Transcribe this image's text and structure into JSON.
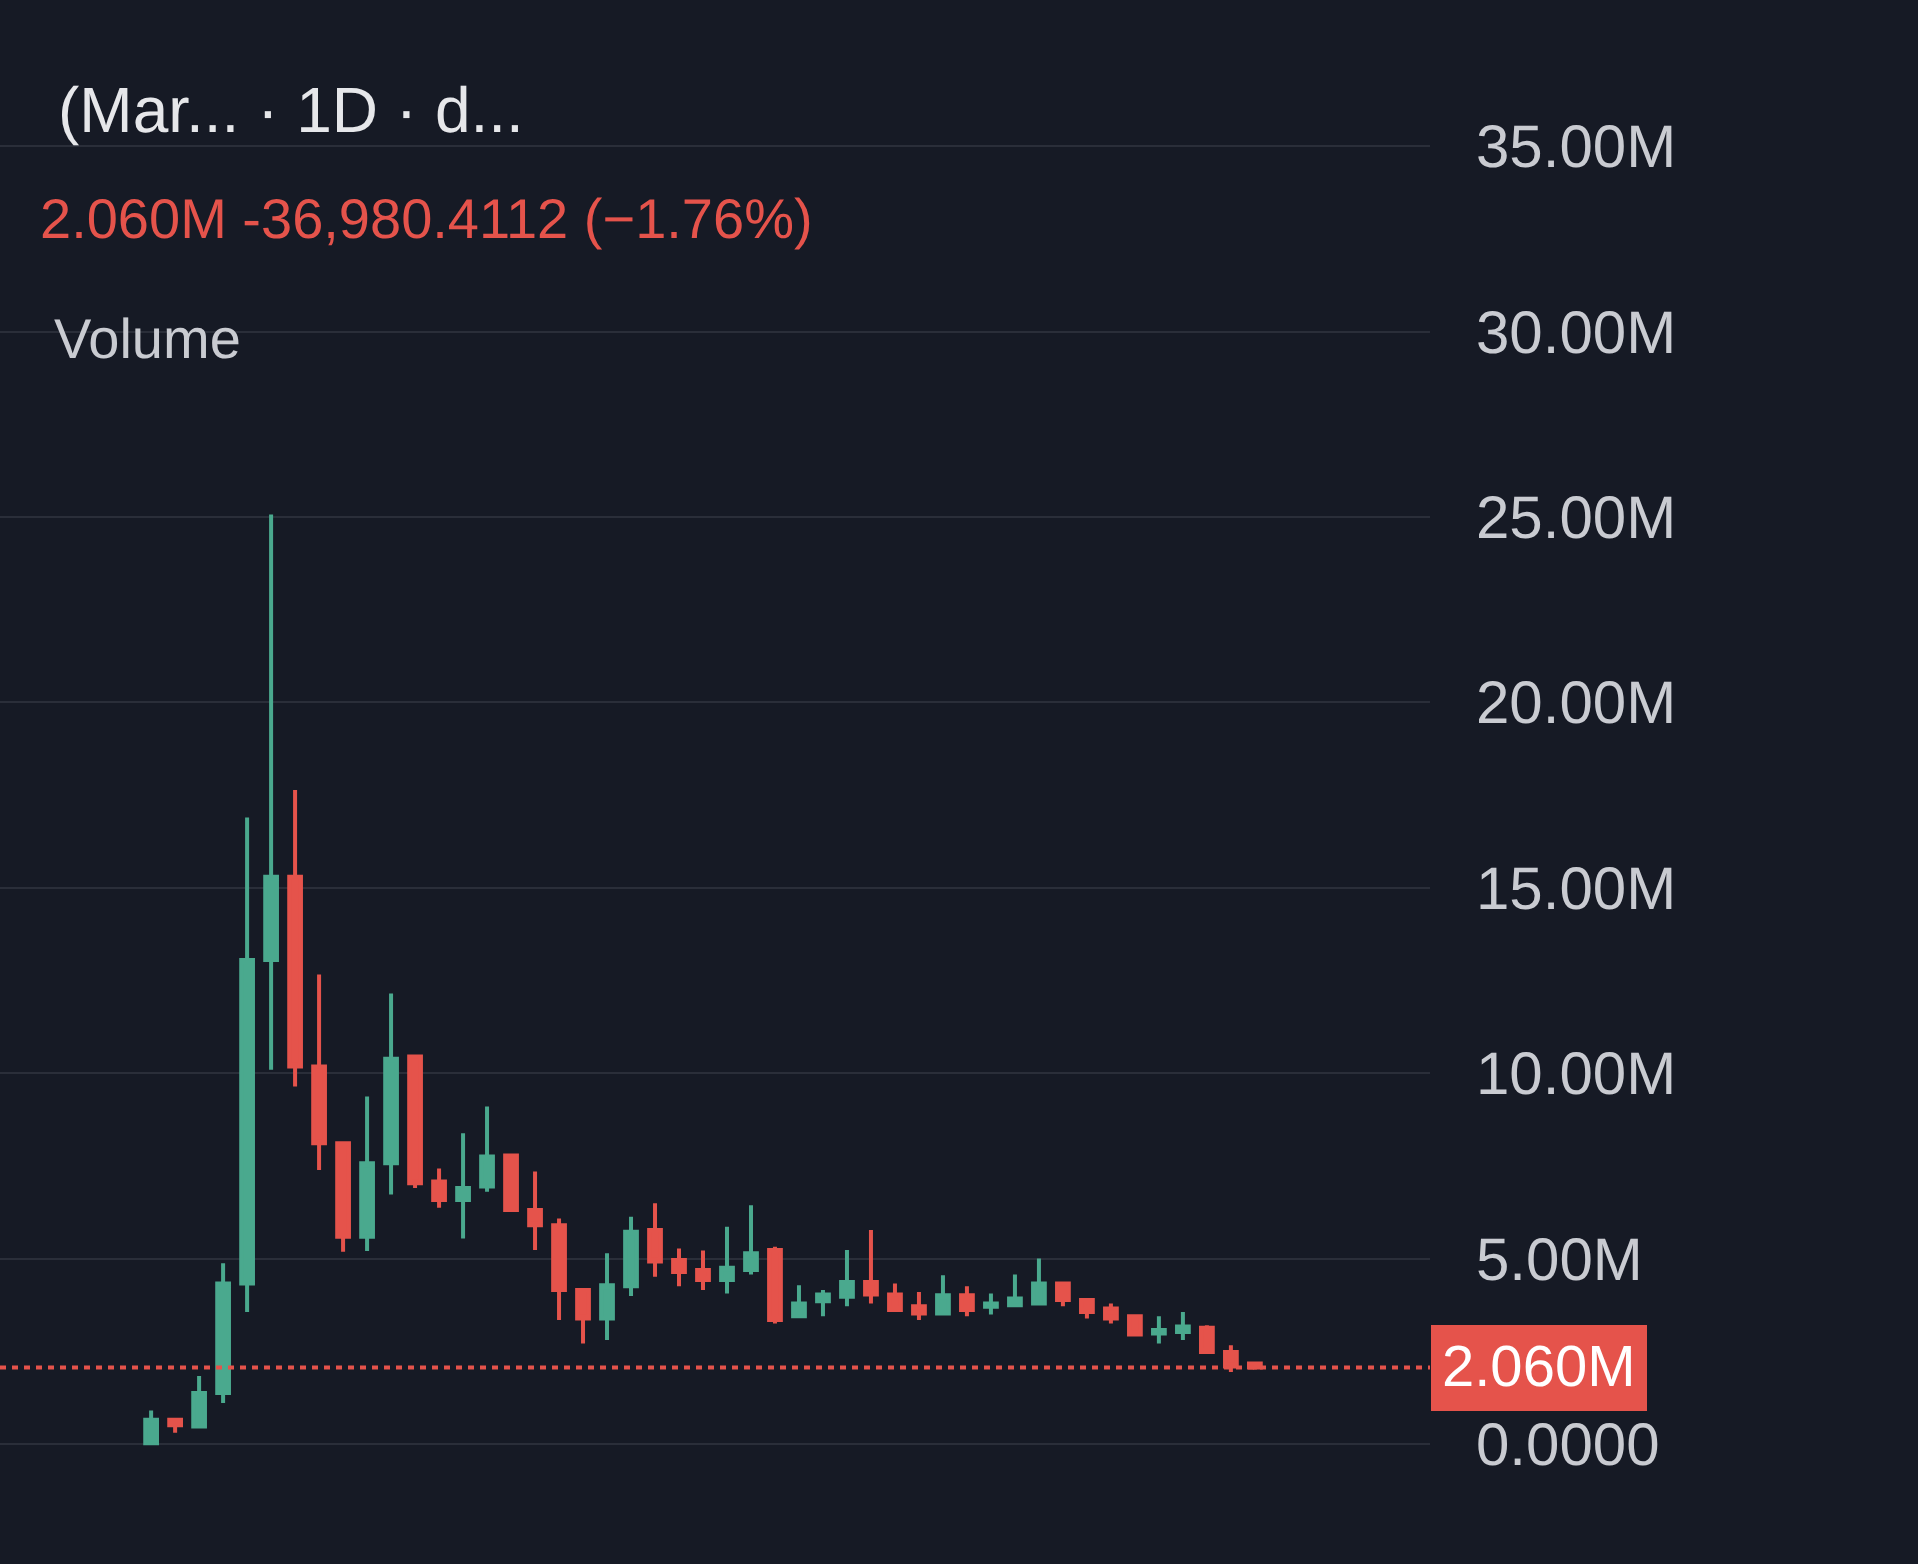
{
  "chart_data": {
    "type": "candlestick",
    "title": "(Mar... · 1D · d...",
    "subtitle": "2.060M -36,980.4112 (−1.76%)",
    "annotations": [
      "Volume"
    ],
    "categories": [
      null,
      null,
      null,
      null,
      null,
      null,
      null,
      null,
      null,
      null,
      null,
      null,
      null,
      null,
      null,
      null,
      null,
      null,
      null,
      null,
      null,
      null,
      null,
      null,
      null,
      null,
      null,
      null,
      null,
      null,
      null,
      null,
      null,
      null,
      null,
      null,
      null,
      null,
      null,
      null,
      null,
      null,
      null,
      null,
      null,
      null,
      null
    ],
    "ohlc": [
      [
        0.02,
        0.9,
        0.0,
        0.65
      ],
      [
        0.65,
        0.65,
        0.3,
        0.5
      ],
      [
        0.47,
        1.83,
        0.47,
        1.37
      ],
      [
        1.37,
        4.87,
        1.1,
        4.33
      ],
      [
        4.33,
        16.9,
        3.56,
        13.05
      ],
      [
        13.05,
        25.07,
        10.09,
        15.3
      ],
      [
        15.3,
        17.64,
        9.64,
        10.18
      ],
      [
        10.18,
        12.66,
        7.39,
        8.11
      ],
      [
        8.11,
        8.11,
        5.18,
        5.59
      ],
      [
        5.59,
        9.37,
        5.2,
        7.57
      ],
      [
        7.57,
        12.15,
        6.73,
        10.39
      ],
      [
        10.45,
        10.45,
        6.9,
        7.03
      ],
      [
        7.08,
        7.43,
        6.37,
        6.58
      ],
      [
        6.58,
        8.38,
        5.54,
        6.9
      ],
      [
        6.94,
        9.1,
        6.8,
        7.75
      ],
      [
        7.78,
        7.78,
        6.31,
        6.31
      ],
      [
        6.31,
        7.35,
        5.23,
        5.9
      ],
      [
        5.9,
        6.08,
        3.34,
        4.15
      ],
      [
        4.15,
        4.15,
        2.71,
        3.38
      ],
      [
        3.38,
        5.14,
        2.8,
        4.28
      ],
      [
        4.25,
        6.13,
        3.99,
        5.72
      ],
      [
        5.77,
        6.49,
        4.51,
        4.92
      ],
      [
        4.96,
        5.27,
        4.25,
        4.64
      ],
      [
        4.69,
        5.22,
        4.15,
        4.42
      ],
      [
        4.42,
        5.86,
        4.06,
        4.75
      ],
      [
        4.69,
        6.44,
        4.57,
        5.14
      ],
      [
        5.23,
        5.32,
        3.25,
        3.34
      ],
      [
        3.44,
        4.28,
        3.4,
        3.79
      ],
      [
        3.85,
        4.15,
        3.44,
        4.03
      ],
      [
        3.97,
        5.23,
        3.71,
        4.37
      ],
      [
        4.37,
        5.77,
        3.79,
        4.03
      ],
      [
        4.03,
        4.33,
        3.61,
        3.61
      ],
      [
        3.71,
        4.1,
        3.34,
        3.52
      ],
      [
        3.52,
        4.55,
        3.49,
        4.01
      ],
      [
        4.01,
        4.25,
        3.44,
        3.61
      ],
      [
        3.7,
        4.06,
        3.49,
        3.79
      ],
      [
        3.74,
        4.57,
        3.71,
        3.92
      ],
      [
        3.79,
        5.0,
        3.79,
        4.33
      ],
      [
        4.33,
        4.33,
        3.71,
        3.88
      ],
      [
        3.88,
        3.88,
        3.38,
        3.56
      ],
      [
        3.65,
        3.79,
        3.25,
        3.38
      ],
      [
        3.44,
        3.44,
        2.95,
        2.95
      ],
      [
        2.98,
        3.44,
        2.71,
        3.07
      ],
      [
        3.02,
        3.56,
        2.8,
        3.17
      ],
      [
        3.13,
        3.2,
        2.48,
        2.48
      ],
      [
        2.48,
        2.66,
        1.94,
        2.09
      ],
      [
        2.17,
        2.17,
        2.0,
        2.06
      ]
    ],
    "colors": [
      "#4aa98e",
      "#e5534b",
      "#4aa98e",
      "#4aa98e",
      "#4aa98e",
      "#4aa98e",
      "#e5534b",
      "#e5534b",
      "#e5534b",
      "#4aa98e",
      "#4aa98e",
      "#e5534b",
      "#e5534b",
      "#4aa98e",
      "#4aa98e",
      "#e5534b",
      "#e5534b",
      "#e5534b",
      "#e5534b",
      "#4aa98e",
      "#4aa98e",
      "#e5534b",
      "#e5534b",
      "#e5534b",
      "#4aa98e",
      "#4aa98e",
      "#e5534b",
      "#4aa98e",
      "#4aa98e",
      "#4aa98e",
      "#e5534b",
      "#e5534b",
      "#e5534b",
      "#4aa98e",
      "#e5534b",
      "#4aa98e",
      "#4aa98e",
      "#4aa98e",
      "#e5534b",
      "#e5534b",
      "#e5534b",
      "#e5534b",
      "#4aa98e",
      "#4aa98e",
      "#e5534b",
      "#e5534b",
      "#e5534b"
    ],
    "ylim": [
      -3.24,
      38.95
    ],
    "yticks": [
      {
        "value": 0,
        "label": "0.0000"
      },
      {
        "value": 5,
        "label": "5.00M"
      },
      {
        "value": 10,
        "label": "10.00M"
      },
      {
        "value": 15,
        "label": "15.00M"
      },
      {
        "value": 20,
        "label": "20.00M"
      },
      {
        "value": 25,
        "label": "25.00M"
      },
      {
        "value": 30,
        "label": "30.00M"
      },
      {
        "value": 35,
        "label": "35.00M"
      }
    ],
    "grid": "y",
    "legend": false,
    "ref_lines": [
      {
        "axis": "y",
        "value": 2.06,
        "label": "2.060M",
        "color": "#e5534b",
        "line_style": "dotted"
      }
    ]
  }
}
